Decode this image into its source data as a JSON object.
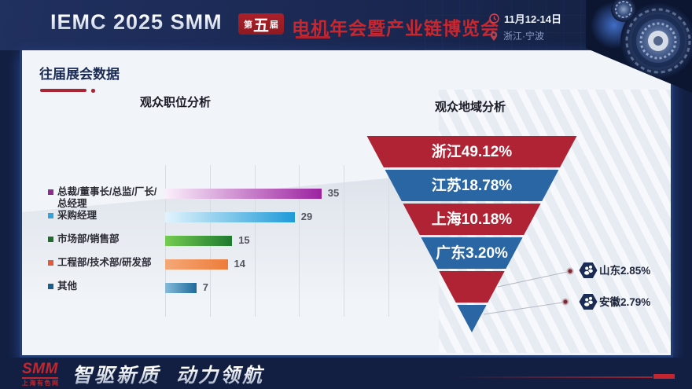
{
  "header": {
    "brand": "IEMC 2025 SMM",
    "badge_prefix": "第",
    "badge_number": "五",
    "badge_suffix": "届",
    "title": "电机年会暨产业链博览会",
    "date": "11月12-14日",
    "location": "浙江·宁波"
  },
  "section_title": "往届展会数据",
  "footer": {
    "logo_text": "SMM",
    "logo_subtitle": "上海有色网",
    "slogan_left": "智驱新质",
    "slogan_right": "动力领航"
  },
  "chart_data": [
    {
      "type": "bar",
      "title": "观众职位分析",
      "orientation": "horizontal",
      "categories": [
        "总裁/董事长/总监/厂长/总经理",
        "采购经理",
        "市场部/销售部",
        "工程部/技术部/研发部",
        "其他"
      ],
      "values": [
        35,
        29,
        15,
        14,
        7
      ],
      "xlim": [
        0,
        50
      ],
      "grid": true,
      "gridline_step": 10,
      "value_labels": true,
      "bar_colors_end": [
        "#9c22a0",
        "#1e9ad8",
        "#1f7a2f",
        "#ed7c3a",
        "#1d6a9b"
      ],
      "bar_colors_start": [
        "#fbeffb",
        "#e2f4fd",
        "#74cc50",
        "#f5a878",
        "#86bbdb"
      ],
      "legend_colors": [
        "#8f2c8f",
        "#35a3d9",
        "#1d6e2d",
        "#e4593c",
        "#185e8e"
      ]
    },
    {
      "type": "funnel",
      "title": "观众地域分析",
      "categories": [
        "浙江",
        "江苏",
        "上海",
        "广东",
        "山东",
        "安徽"
      ],
      "values": [
        49.12,
        18.78,
        10.18,
        3.2,
        2.85,
        2.79
      ],
      "labels": [
        "浙江49.12%",
        "江苏18.78%",
        "上海10.18%",
        "广东3.20%",
        "山东2.85%",
        "安徽2.79%"
      ],
      "colors": [
        "#b02334",
        "#2a65a4",
        "#b02334",
        "#2a65a4",
        "#b02334",
        "#2a65a4"
      ],
      "inside_label_count": 4,
      "callout_indices": [
        4,
        5
      ],
      "hex_color": "#1a2b55"
    }
  ]
}
